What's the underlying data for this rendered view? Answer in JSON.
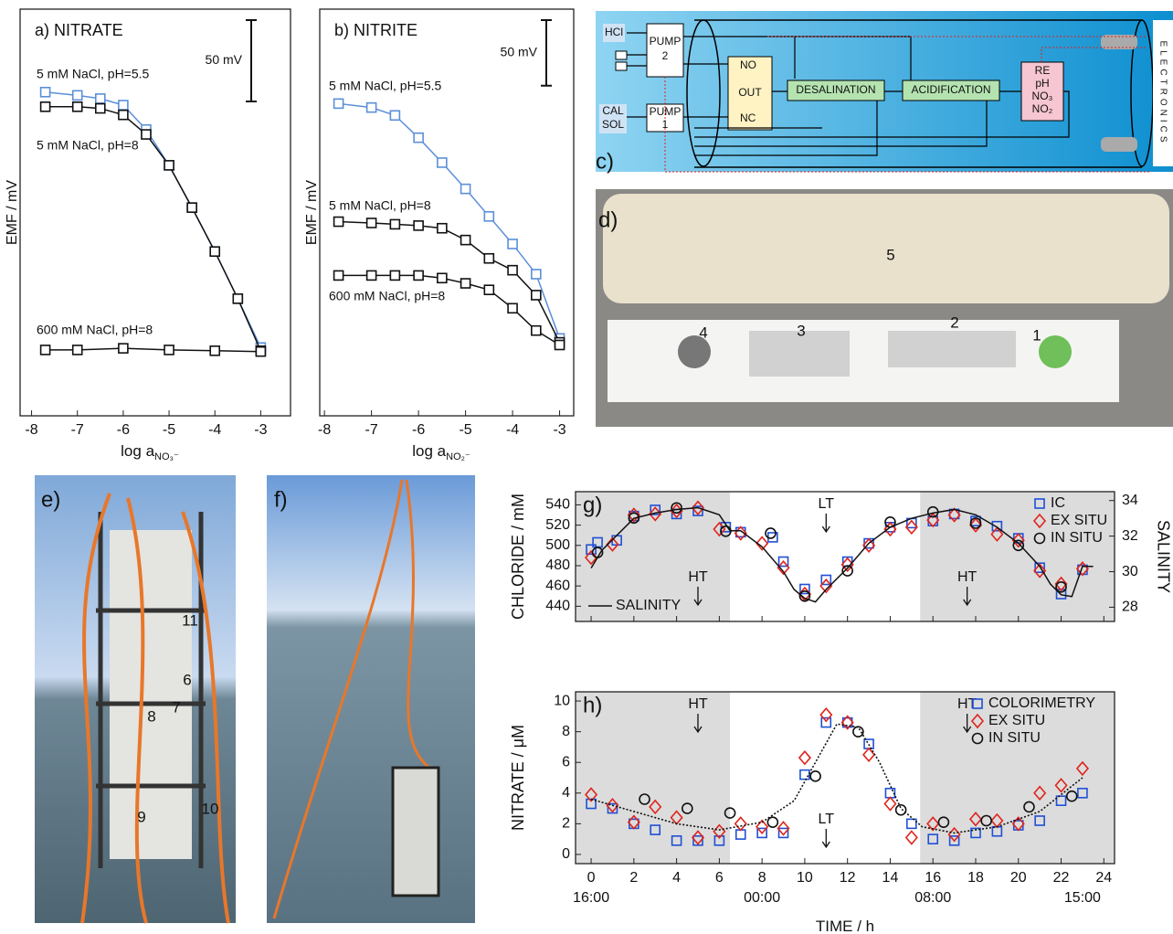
{
  "chart_data": [
    {
      "type": "line",
      "title": "a) NITRATE",
      "ylabel": "EMF / mV",
      "xlabel": "log a",
      "xlabel_subscript": "NO₃⁻",
      "x": [
        -7.7,
        -7,
        -6.5,
        -6,
        -5.5,
        -5,
        -4.5,
        -4,
        -3.5,
        -3
      ],
      "xlim": [
        -8.25,
        -2.35
      ],
      "xticks": [
        -8,
        -7,
        -6,
        -5,
        -4,
        -3
      ],
      "ylim": [
        0,
        250
      ],
      "scalebar": {
        "value": 50,
        "label": "50 mV"
      },
      "series": [
        {
          "name": "5 mM NaCl, pH=5.5",
          "color": "#5b8fd9",
          "marker": "square",
          "values": [
            199,
            197,
            195,
            191,
            176,
            154,
            128,
            101,
            72,
            42
          ]
        },
        {
          "name": "5 mM NaCl, pH=8",
          "color": "#111111",
          "marker": "square",
          "values": [
            190,
            190,
            189,
            185,
            173,
            154,
            128,
            101,
            72,
            40
          ]
        },
        {
          "name": "600 mM NaCl, pH=8",
          "color": "#111111",
          "marker": "square",
          "x": [
            -7.7,
            -7,
            -6,
            -5,
            -4,
            -3
          ],
          "values": [
            40.5,
            40.5,
            41.5,
            40.5,
            40,
            39.5
          ]
        }
      ]
    },
    {
      "type": "line",
      "title": "b) NITRITE",
      "ylabel": "EMF / mV",
      "xlabel": "log a",
      "xlabel_subscript": "NO₂⁻",
      "x": [
        -7.7,
        -7,
        -6.5,
        -6,
        -5.5,
        -5,
        -4.5,
        -4,
        -3.5,
        -3
      ],
      "xlim": [
        -8.1,
        -2.7
      ],
      "xticks": [
        -8,
        -7,
        -6,
        -5,
        -4,
        -3
      ],
      "ylim": [
        0,
        310
      ],
      "scalebar": {
        "value": 50,
        "label": "50 mV"
      },
      "series": [
        {
          "name": "5 mM NaCl, pH=5.5",
          "color": "#5b8fd9",
          "marker": "square",
          "values": [
            238,
            235,
            229,
            212,
            193,
            173,
            152,
            131,
            108,
            59
          ]
        },
        {
          "name": "5 mM NaCl, pH=8",
          "color": "#111111",
          "marker": "square",
          "values": [
            148,
            147,
            146,
            145,
            143,
            134,
            120,
            111,
            92,
            56
          ]
        },
        {
          "name": "600 mM NaCl, pH=8",
          "color": "#111111",
          "marker": "square",
          "values": [
            107,
            107,
            107,
            107,
            105,
            101,
            96,
            82,
            65,
            54
          ]
        }
      ]
    },
    {
      "type": "scatter",
      "title": "g)",
      "ylabel": "CHLORIDE / mM",
      "y2label": "SALINITY",
      "xlim": [
        -0.73,
        24.5
      ],
      "xticks": [
        0,
        2,
        4,
        6,
        8,
        10,
        12,
        14,
        16,
        18,
        20,
        22,
        24
      ],
      "xtick_labels": false,
      "ylim": [
        425,
        553
      ],
      "yticks": [
        440,
        460,
        480,
        500,
        520,
        540
      ],
      "y2lim": [
        27.2,
        34.5
      ],
      "y2ticks": [
        28,
        30,
        32,
        34
      ],
      "shaded": [
        [
          -0.73,
          6.5
        ],
        [
          15.4,
          24.5
        ]
      ],
      "legend": "upper right",
      "annotations": [
        {
          "text": "LT",
          "x": 11,
          "position": "top"
        },
        {
          "text": "HT",
          "x": 5,
          "position": "bottom"
        },
        {
          "text": "HT",
          "x": 17.6,
          "position": "bottom"
        }
      ],
      "series": [
        {
          "name": "IC",
          "color": "#1f4fd6",
          "marker": "square",
          "x": [
            0,
            0.3,
            1.2,
            2,
            3,
            4,
            5,
            6.3,
            7,
            8.5,
            9,
            10,
            11,
            12,
            13,
            14,
            15,
            16,
            17,
            18,
            19,
            20,
            21,
            22,
            23
          ],
          "values": [
            496,
            503,
            505,
            529,
            535,
            531,
            534,
            518,
            513,
            508,
            484,
            457,
            466,
            484,
            502,
            518,
            522,
            524,
            531,
            524,
            519,
            507,
            478,
            452,
            476
          ]
        },
        {
          "name": "EX SITU",
          "color": "#e0241b",
          "marker": "diamond",
          "x": [
            0,
            1,
            2,
            3,
            4,
            5,
            6,
            7,
            8,
            9,
            10,
            11,
            12,
            13,
            14,
            15,
            16,
            17,
            18,
            19,
            20,
            21,
            22,
            23
          ],
          "values": [
            488,
            501,
            530,
            531,
            534,
            537,
            516,
            512,
            502,
            478,
            452,
            460,
            481,
            500,
            516,
            518,
            525,
            530,
            520,
            511,
            505,
            475,
            462,
            477
          ]
        },
        {
          "name": "IN SITU",
          "color": "#111111",
          "marker": "circle",
          "x": [
            0.3,
            2,
            4,
            6.3,
            8.4,
            10,
            12,
            14,
            16,
            18,
            20,
            22
          ],
          "values": [
            493,
            527,
            537,
            514,
            512,
            450,
            475,
            523,
            533,
            522,
            500,
            459
          ]
        },
        {
          "name": "SALINITY",
          "color": "#111111",
          "axis": "y2",
          "legend_corner": "lower left",
          "x": [
            0,
            0.5,
            1,
            2,
            3,
            4,
            5,
            6,
            6.5,
            7,
            8,
            9,
            9.5,
            10,
            10.5,
            11,
            12,
            13,
            14,
            15,
            16,
            17,
            18,
            19,
            20,
            21,
            21.5,
            22,
            22.5,
            23,
            23.5
          ],
          "values": [
            30.2,
            31.2,
            31.8,
            33.0,
            33.3,
            33.5,
            33.6,
            33.2,
            32.3,
            32.3,
            31.4,
            30.0,
            29.0,
            28.5,
            28.3,
            29.0,
            30.2,
            31.6,
            32.5,
            33.0,
            33.3,
            33.5,
            33.2,
            32.5,
            31.6,
            30.3,
            29.3,
            28.7,
            28.6,
            30.3,
            30.3
          ]
        }
      ]
    },
    {
      "type": "scatter",
      "title": "h)",
      "ylabel": "NITRATE / μM",
      "xlabel": "TIME / h",
      "xlim": [
        -0.73,
        24.5
      ],
      "xticks": [
        0,
        2,
        4,
        6,
        8,
        10,
        12,
        14,
        16,
        18,
        20,
        22,
        24
      ],
      "xticks2": [
        {
          "value": 0,
          "label": "16:00"
        },
        {
          "value": 8,
          "label": "00:00"
        },
        {
          "value": 16,
          "label": "08:00"
        },
        {
          "value": 23,
          "label": "15:00"
        }
      ],
      "ylim": [
        -0.6,
        10.6
      ],
      "yticks": [
        0,
        2,
        4,
        6,
        8,
        10
      ],
      "shaded": [
        [
          -0.73,
          6.5
        ],
        [
          15.4,
          24.5
        ]
      ],
      "legend": "upper right",
      "annotations": [
        {
          "text": "HT",
          "x": 5,
          "position": "top"
        },
        {
          "text": "HT",
          "x": 17.6,
          "position": "top"
        },
        {
          "text": "LT",
          "x": 11,
          "position": "bottom"
        }
      ],
      "series": [
        {
          "name": "COLORIMETRY",
          "color": "#1f4fd6",
          "marker": "square",
          "x": [
            0,
            1,
            2,
            3,
            4,
            5,
            6,
            7,
            8,
            9,
            10,
            11,
            12,
            13,
            14,
            15,
            16,
            17,
            18,
            19,
            20,
            21,
            22,
            23
          ],
          "values": [
            3.3,
            3.0,
            2.0,
            1.6,
            0.9,
            0.9,
            0.9,
            1.3,
            1.4,
            1.4,
            5.2,
            8.6,
            8.6,
            7.2,
            4.0,
            2.0,
            1.0,
            0.9,
            1.4,
            1.5,
            1.9,
            2.2,
            3.5,
            4.0
          ]
        },
        {
          "name": "EX SITU",
          "color": "#e0241b",
          "marker": "diamond",
          "x": [
            0,
            1,
            2,
            3,
            4,
            5,
            6,
            7,
            8,
            9,
            10,
            11,
            12,
            13,
            14,
            15,
            16,
            17,
            18,
            19,
            20,
            21,
            22,
            23
          ],
          "values": [
            3.9,
            3.2,
            2.1,
            3.1,
            2.4,
            1.1,
            1.5,
            2.0,
            1.8,
            1.7,
            6.3,
            9.1,
            8.6,
            6.5,
            3.3,
            1.1,
            2.0,
            1.3,
            2.3,
            2.2,
            2.0,
            4.0,
            4.5,
            5.6
          ]
        },
        {
          "name": "IN SITU",
          "color": "#111111",
          "marker": "circle",
          "x": [
            2.5,
            4.5,
            6.5,
            8.5,
            10.5,
            12.5,
            14.5,
            16.5,
            18.5,
            20.5,
            22.5
          ],
          "values": [
            3.6,
            3.0,
            2.7,
            2.1,
            5.1,
            8.0,
            2.9,
            2.1,
            2.2,
            3.1,
            3.8
          ]
        },
        {
          "color": "#111111",
          "dash": "dotted",
          "x": [
            0,
            2,
            4,
            6,
            8,
            9.5,
            10.5,
            11.5,
            12.5,
            13.5,
            14.5,
            15.5,
            17,
            19,
            21,
            23
          ],
          "values": [
            3.6,
            2.8,
            2.0,
            1.6,
            2.1,
            3.5,
            6.0,
            8.5,
            8.3,
            6.0,
            3.0,
            1.8,
            1.4,
            1.8,
            2.8,
            5.0
          ]
        }
      ]
    }
  ],
  "diagram": {
    "label": "c)",
    "hcl": "HCl",
    "pump2": [
      "PUMP",
      "2"
    ],
    "calsol": [
      "CAL",
      "SOL"
    ],
    "pump1": [
      "PUMP",
      "1"
    ],
    "valve": [
      "NO",
      "OUT",
      "NC"
    ],
    "desalination": "DESALINATION",
    "acidification": "ACIDIFICATION",
    "sensors": [
      "RE",
      "pH",
      "NO₃",
      "NO₂"
    ],
    "electronics": "ELECTRONICS"
  },
  "photos": [
    {
      "label": "d)",
      "numbers": [
        "5",
        "4",
        "3",
        "2",
        "1"
      ]
    },
    {
      "label": "e)",
      "numbers": [
        "11",
        "6",
        "7",
        "8",
        "9",
        "10"
      ]
    },
    {
      "label": "f)"
    }
  ]
}
